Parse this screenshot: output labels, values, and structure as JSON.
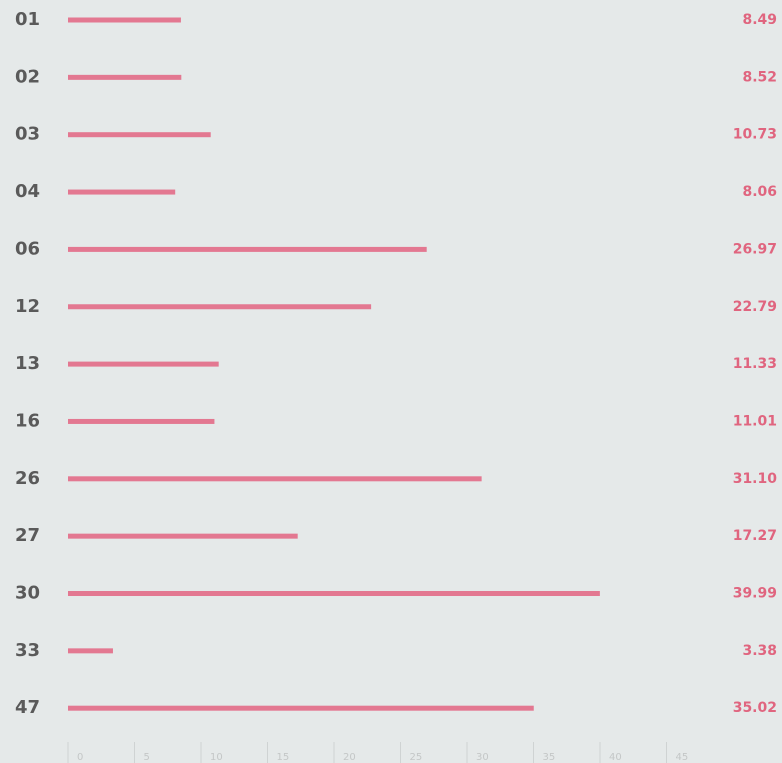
{
  "chart_data": {
    "type": "bar",
    "orientation": "horizontal",
    "categories": [
      "01",
      "02",
      "03",
      "04",
      "06",
      "12",
      "13",
      "16",
      "26",
      "27",
      "30",
      "33",
      "47"
    ],
    "values": [
      8.49,
      8.52,
      10.73,
      8.06,
      26.97,
      22.79,
      11.33,
      11.01,
      31.1,
      17.27,
      39.99,
      3.38,
      35.02
    ],
    "value_labels": [
      "8.49",
      "8.52",
      "10.73",
      "8.06",
      "26.97",
      "22.79",
      "11.33",
      "11.01",
      "31.10",
      "17.27",
      "39.99",
      "3.38",
      "35.02"
    ],
    "color": "#e37891",
    "xlim": [
      0,
      45
    ],
    "xticks": [
      0,
      5,
      10,
      15,
      20,
      25,
      30,
      35,
      40,
      45
    ]
  }
}
